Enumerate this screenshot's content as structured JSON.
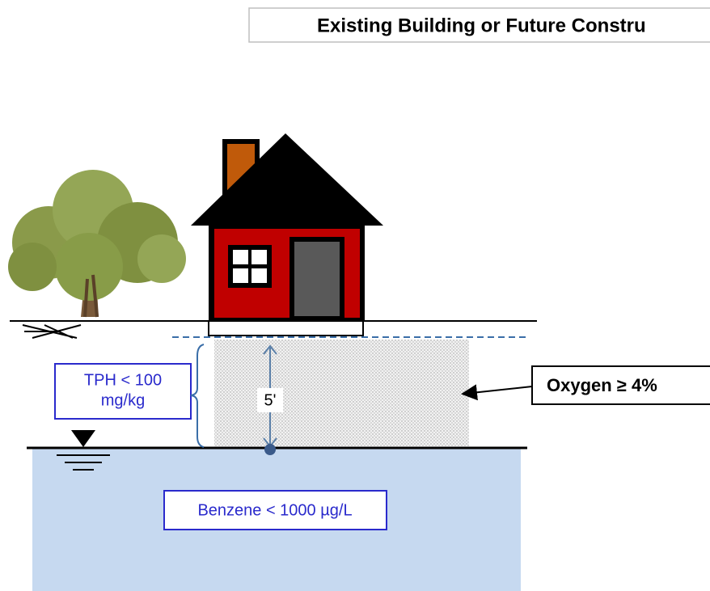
{
  "header": {
    "title": "Existing Building or Future Constru"
  },
  "labels": {
    "tph": [
      "TPH < 100",
      "mg/kg"
    ],
    "depth": "5'",
    "oxygen": "Oxygen ≥ 4%",
    "benzene": "Benzene < 1000 µg/L"
  }
}
